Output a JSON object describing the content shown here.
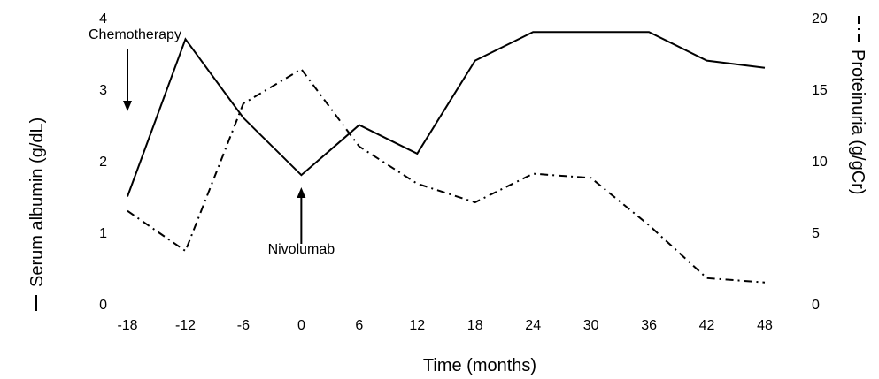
{
  "chart_data": {
    "type": "line",
    "xlabel": "Time (months)",
    "ylabel_left": "Serum albumin (g/dL)",
    "ylabel_right": "Proteinuria (g/gCr)",
    "x": [
      -18,
      -12,
      -6,
      0,
      6,
      12,
      18,
      24,
      30,
      36,
      42,
      48
    ],
    "x_ticks": [
      "-18",
      "-12",
      "-6",
      "0",
      "6",
      "12",
      "18",
      "24",
      "30",
      "36",
      "42",
      "48"
    ],
    "ylim_left": [
      0,
      4
    ],
    "ylim_right": [
      0,
      20
    ],
    "y_ticks_left": [
      "0",
      "1",
      "2",
      "3",
      "4"
    ],
    "y_ticks_right": [
      "0",
      "5",
      "10",
      "15",
      "20"
    ],
    "series": [
      {
        "axis": "left",
        "style": "solid",
        "values": [
          1.5,
          3.7,
          2.6,
          1.8,
          2.5,
          2.1,
          3.4,
          3.8,
          3.8,
          3.8,
          3.4,
          3.3
        ]
      },
      {
        "axis": "right",
        "style": "dash-dot",
        "values": [
          6.5,
          3.7,
          14.0,
          16.4,
          11.0,
          8.4,
          7.1,
          9.1,
          8.8,
          5.5,
          1.8,
          1.5
        ]
      }
    ],
    "annotations": [
      {
        "text": "Chemotherapy",
        "x": -18,
        "direction": "down"
      },
      {
        "text": "Nivolumab",
        "x": 0,
        "direction": "up"
      }
    ],
    "grid": false,
    "colors": {
      "line": "#000000"
    }
  }
}
